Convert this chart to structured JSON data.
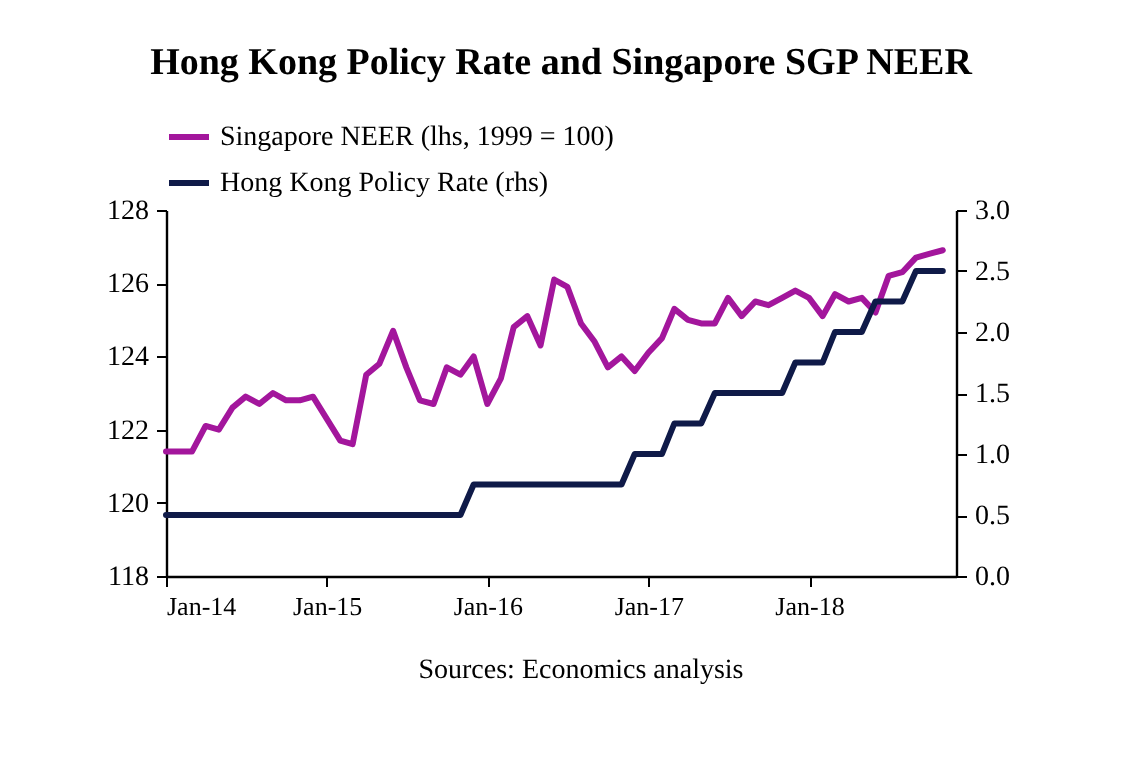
{
  "chart_data": {
    "type": "line",
    "title": "Hong Kong Policy Rate and Singapore SGP NEER",
    "x": [
      "2014-01",
      "2014-02",
      "2014-03",
      "2014-04",
      "2014-05",
      "2014-06",
      "2014-07",
      "2014-08",
      "2014-09",
      "2014-10",
      "2014-11",
      "2014-12",
      "2015-01",
      "2015-02",
      "2015-03",
      "2015-04",
      "2015-05",
      "2015-06",
      "2015-07",
      "2015-08",
      "2015-09",
      "2015-10",
      "2015-11",
      "2015-12",
      "2016-01",
      "2016-02",
      "2016-03",
      "2016-04",
      "2016-05",
      "2016-06",
      "2016-07",
      "2016-08",
      "2016-09",
      "2016-10",
      "2016-11",
      "2016-12",
      "2017-01",
      "2017-02",
      "2017-03",
      "2017-04",
      "2017-05",
      "2017-06",
      "2017-07",
      "2017-08",
      "2017-09",
      "2017-10",
      "2017-11",
      "2017-12",
      "2018-01",
      "2018-02",
      "2018-03",
      "2018-04",
      "2018-05",
      "2018-06",
      "2018-07",
      "2018-08",
      "2018-09",
      "2018-10",
      "2018-11"
    ],
    "series": [
      {
        "name": "Singapore NEER (lhs, 1999 = 100)",
        "color": "#a3169c",
        "values": [
          121.4,
          121.4,
          121.4,
          122.1,
          122.0,
          122.6,
          122.9,
          122.7,
          123.0,
          122.8,
          122.8,
          122.9,
          122.3,
          121.7,
          121.6,
          123.5,
          123.8,
          124.7,
          123.7,
          122.8,
          122.7,
          123.7,
          123.5,
          124.0,
          122.7,
          123.4,
          124.8,
          125.1,
          124.3,
          126.1,
          125.9,
          124.9,
          124.4,
          123.7,
          124.0,
          123.6,
          124.1,
          124.5,
          125.3,
          125.0,
          124.9,
          124.9,
          125.6,
          125.1,
          125.5,
          125.4,
          125.6,
          125.8,
          125.6,
          125.1,
          125.7,
          125.5,
          125.6,
          125.2,
          126.2,
          126.3,
          126.7,
          126.8,
          126.9
        ]
      },
      {
        "name": "Hong Kong Policy Rate (rhs)",
        "color": "#0f1a48",
        "axis": "y2",
        "values": [
          0.5,
          0.5,
          0.5,
          0.5,
          0.5,
          0.5,
          0.5,
          0.5,
          0.5,
          0.5,
          0.5,
          0.5,
          0.5,
          0.5,
          0.5,
          0.5,
          0.5,
          0.5,
          0.5,
          0.5,
          0.5,
          0.5,
          0.5,
          0.75,
          0.75,
          0.75,
          0.75,
          0.75,
          0.75,
          0.75,
          0.75,
          0.75,
          0.75,
          0.75,
          0.75,
          1.0,
          1.0,
          1.0,
          1.25,
          1.25,
          1.25,
          1.5,
          1.5,
          1.5,
          1.5,
          1.5,
          1.5,
          1.75,
          1.75,
          1.75,
          2.0,
          2.0,
          2.0,
          2.25,
          2.25,
          2.25,
          2.5,
          2.5,
          2.5
        ]
      }
    ],
    "xlim": [
      "2014-01",
      "2018-12"
    ],
    "xticks": [
      {
        "value": "2014-01",
        "label": "Jan-14"
      },
      {
        "value": "2015-01",
        "label": "Jan-15"
      },
      {
        "value": "2016-01",
        "label": "Jan-16"
      },
      {
        "value": "2017-01",
        "label": "Jan-17"
      },
      {
        "value": "2018-01",
        "label": "Jan-18"
      }
    ],
    "ylim": [
      118,
      128
    ],
    "yticks": [
      118,
      120,
      122,
      124,
      126,
      128
    ],
    "y2lim": [
      0,
      3
    ],
    "y2ticks": [
      {
        "value": 0,
        "label": "0.0"
      },
      {
        "value": 0.5,
        "label": "0.5"
      },
      {
        "value": 1,
        "label": "1.0"
      },
      {
        "value": 1.5,
        "label": "1.5"
      },
      {
        "value": 2,
        "label": "2.0"
      },
      {
        "value": 2.5,
        "label": "2.5"
      },
      {
        "value": 3,
        "label": "3.0"
      }
    ],
    "grid": false,
    "legend": "top",
    "marker": "none",
    "line_style": "solid",
    "annotations": [
      "Sources: Economics analysis"
    ]
  }
}
